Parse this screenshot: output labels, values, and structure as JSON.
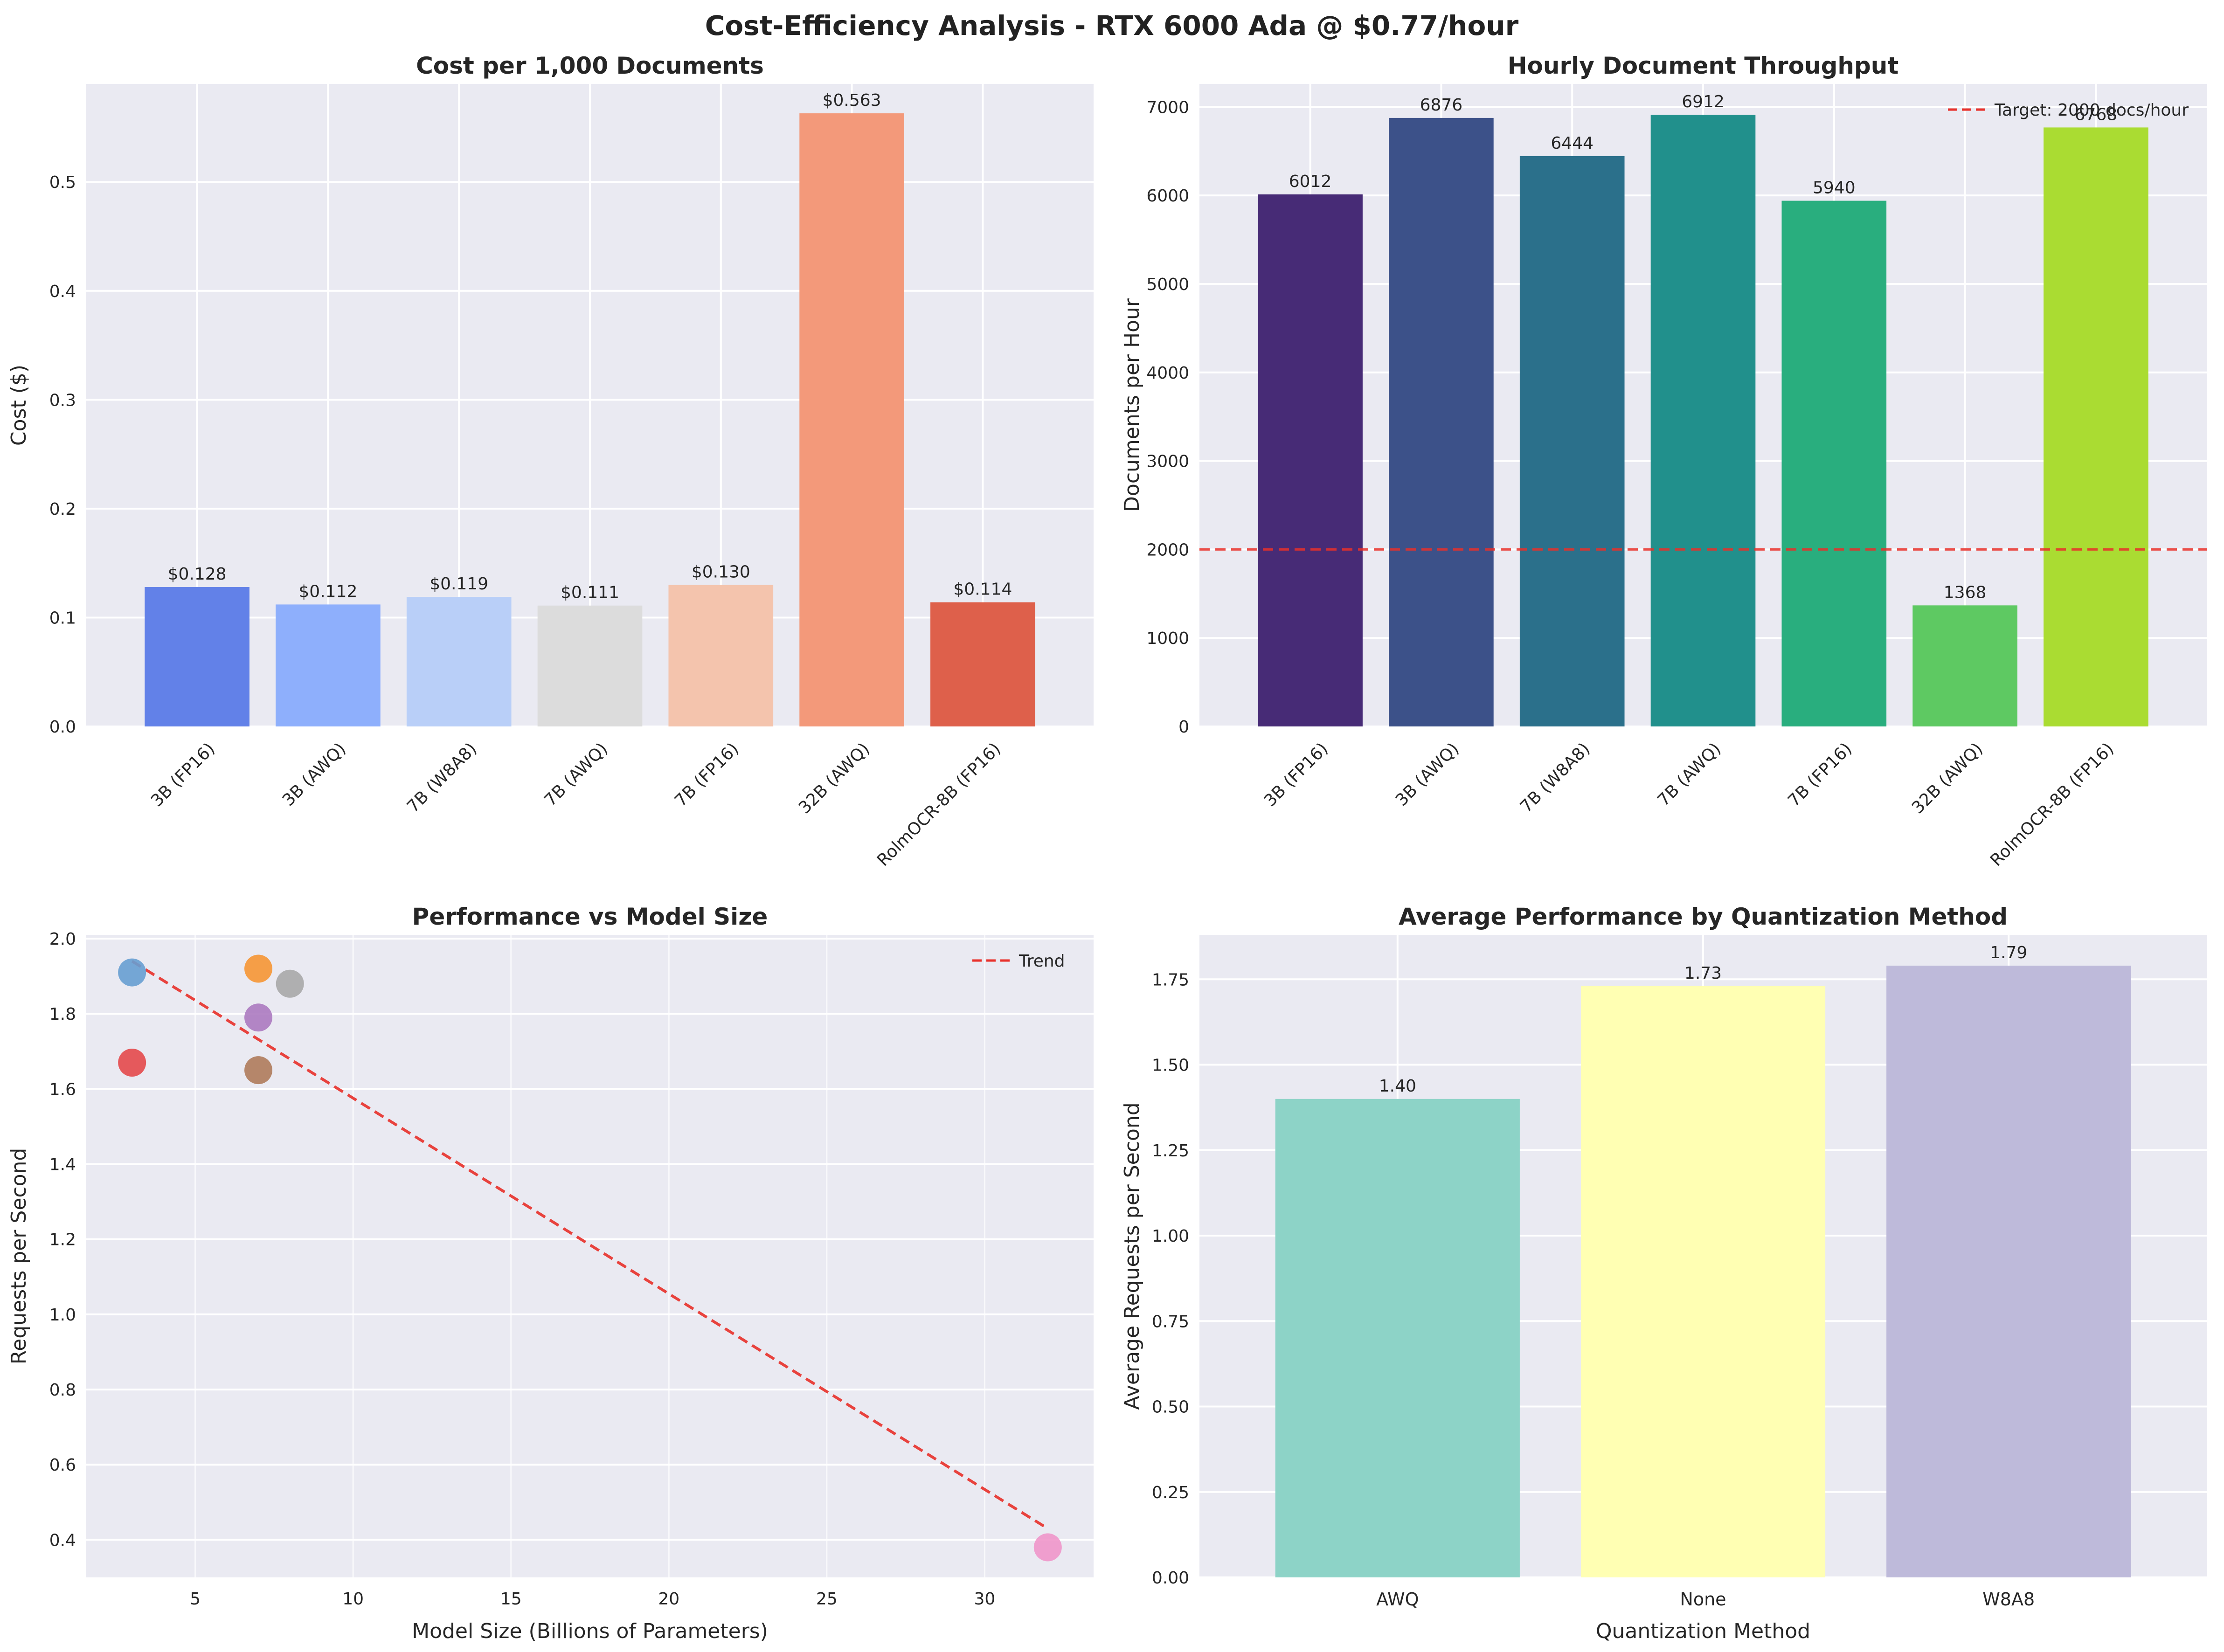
{
  "figure": {
    "title": "Cost-Efficiency Analysis - RTX 6000 Ada @ $0.77/hour"
  },
  "chart_data": [
    {
      "type": "bar",
      "title": "Cost per 1,000 Documents",
      "xlabel": "",
      "ylabel": "Cost ($)",
      "categories": [
        "3B (FP16)",
        "3B (AWQ)",
        "7B (W8A8)",
        "7B (AWQ)",
        "7B (FP16)",
        "32B (AWQ)",
        "RolmOCR-8B (FP16)"
      ],
      "values": [
        0.128,
        0.112,
        0.119,
        0.111,
        0.13,
        0.563,
        0.114
      ],
      "value_labels": [
        "$0.128",
        "$0.112",
        "$0.119",
        "$0.111",
        "$0.130",
        "$0.563",
        "$0.114"
      ],
      "colors": [
        "#6281e8",
        "#8eaffc",
        "#b9cff8",
        "#dcdcdc",
        "#f4c4ad",
        "#f3997a",
        "#de604b"
      ],
      "ylim": [
        0,
        0.59
      ],
      "yticks": [
        0.0,
        0.1,
        0.2,
        0.3,
        0.4,
        0.5
      ],
      "ytick_labels": [
        "0.0",
        "0.1",
        "0.2",
        "0.3",
        "0.4",
        "0.5"
      ],
      "grid": true
    },
    {
      "type": "bar",
      "title": "Hourly Document Throughput",
      "xlabel": "",
      "ylabel": "Documents per Hour",
      "categories": [
        "3B (FP16)",
        "3B (AWQ)",
        "7B (W8A8)",
        "7B (AWQ)",
        "7B (FP16)",
        "32B (AWQ)",
        "RolmOCR-8B (FP16)"
      ],
      "values": [
        6012,
        6876,
        6444,
        6912,
        5940,
        1368,
        6768
      ],
      "value_labels": [
        "6012",
        "6876",
        "6444",
        "6912",
        "5940",
        "1368",
        "6768"
      ],
      "colors": [
        "#472b76",
        "#3c5189",
        "#2b708b",
        "#21908c",
        "#29ae7e",
        "#5ec962",
        "#aadc32"
      ],
      "ylim": [
        0,
        7260
      ],
      "yticks": [
        0,
        1000,
        2000,
        3000,
        4000,
        5000,
        6000,
        7000
      ],
      "ytick_labels": [
        "0",
        "1000",
        "2000",
        "3000",
        "4000",
        "5000",
        "6000",
        "7000"
      ],
      "target_line": {
        "value": 2000,
        "label": "Target: 2000 docs/hour",
        "color": "#e8302a"
      },
      "legend": "top-right",
      "grid": true
    },
    {
      "type": "scatter",
      "title": "Performance vs Model Size",
      "xlabel": "Model Size (Billions of Parameters)",
      "ylabel": "Requests per Second",
      "points": [
        {
          "x": 3,
          "y": 1.91,
          "color": "#679fd1"
        },
        {
          "x": 3,
          "y": 1.67,
          "color": "#e4494b"
        },
        {
          "x": 7,
          "y": 1.92,
          "color": "#f69634"
        },
        {
          "x": 7,
          "y": 1.79,
          "color": "#ac7ac0"
        },
        {
          "x": 7,
          "y": 1.65,
          "color": "#af7b5b"
        },
        {
          "x": 8,
          "y": 1.88,
          "color": "#a8a8a8"
        },
        {
          "x": 32,
          "y": 0.38,
          "color": "#f096ca"
        }
      ],
      "trend": {
        "x": [
          3,
          32
        ],
        "y": [
          1.94,
          0.43
        ],
        "label": "Trend",
        "color": "#e8302a"
      },
      "xlim": [
        1.55,
        33.45
      ],
      "ylim": [
        0.3,
        2.01
      ],
      "xticks": [
        5,
        10,
        15,
        20,
        25,
        30
      ],
      "xtick_labels": [
        "5",
        "10",
        "15",
        "20",
        "25",
        "30"
      ],
      "yticks": [
        0.4,
        0.6,
        0.8,
        1.0,
        1.2,
        1.4,
        1.6,
        1.8,
        2.0
      ],
      "ytick_labels": [
        "0.4",
        "0.6",
        "0.8",
        "1.0",
        "1.2",
        "1.4",
        "1.6",
        "1.8",
        "2.0"
      ],
      "legend": "top-right",
      "grid": true
    },
    {
      "type": "bar",
      "title": "Average Performance by Quantization Method",
      "xlabel": "Quantization Method",
      "ylabel": "Average Requests per Second",
      "categories": [
        "AWQ",
        "None",
        "W8A8"
      ],
      "values": [
        1.4,
        1.73,
        1.79
      ],
      "value_labels": [
        "1.40",
        "1.73",
        "1.79"
      ],
      "colors": [
        "#8dd3c7",
        "#ffffb3",
        "#bebada"
      ],
      "ylim": [
        0,
        1.88
      ],
      "yticks": [
        0.0,
        0.25,
        0.5,
        0.75,
        1.0,
        1.25,
        1.5,
        1.75
      ],
      "ytick_labels": [
        "0.00",
        "0.25",
        "0.50",
        "0.75",
        "1.00",
        "1.25",
        "1.50",
        "1.75"
      ],
      "grid": true
    }
  ]
}
